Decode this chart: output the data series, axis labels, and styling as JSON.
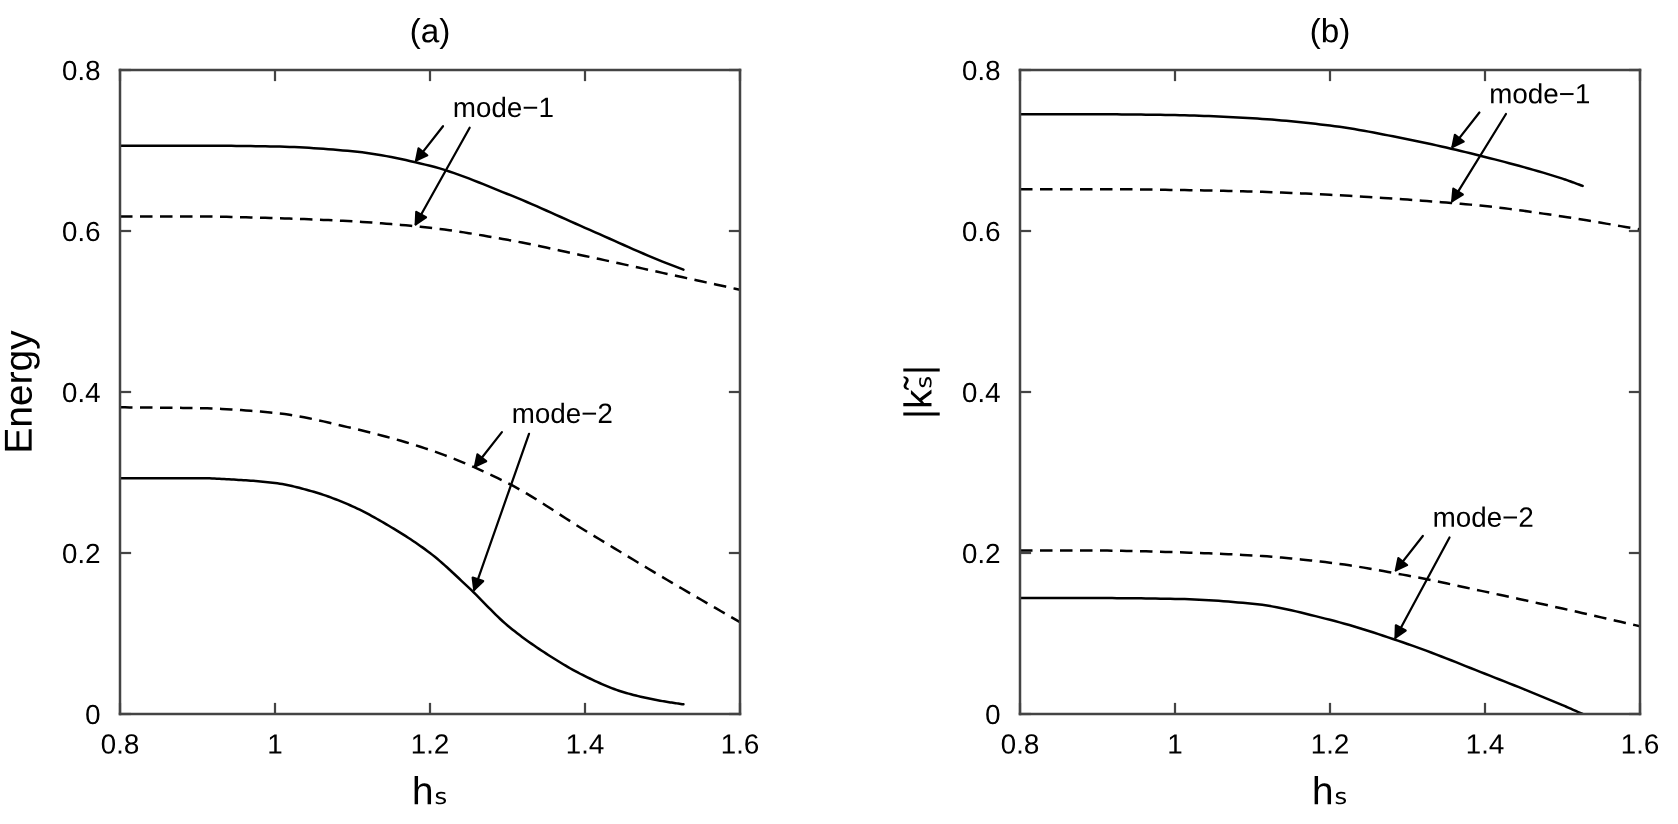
{
  "chart_data": [
    {
      "type": "line",
      "title": "(a)",
      "xlabel": "hₛ",
      "ylabel": "Energy",
      "xlim": [
        0.8,
        1.6
      ],
      "ylim": [
        0,
        0.8
      ],
      "xticks": [
        0.8,
        1,
        1.2,
        1.4,
        1.6
      ],
      "yticks": [
        0,
        0.2,
        0.4,
        0.6,
        0.8
      ],
      "series": [
        {
          "color": "#000000",
          "line_style": "solid",
          "x": [
            0.8,
            0.9,
            1.0,
            1.1,
            1.2,
            1.3,
            1.4,
            1.5,
            1.527
          ],
          "values": [
            0.706,
            0.706,
            0.705,
            0.699,
            0.681,
            0.646,
            0.604,
            0.562,
            0.552
          ]
        },
        {
          "color": "#000000",
          "line_style": "dashed",
          "x": [
            0.8,
            0.9,
            1.0,
            1.1,
            1.2,
            1.3,
            1.4,
            1.5,
            1.6
          ],
          "values": [
            0.618,
            0.618,
            0.616,
            0.612,
            0.604,
            0.589,
            0.569,
            0.548,
            0.527
          ]
        },
        {
          "color": "#000000",
          "line_style": "dashed",
          "x": [
            0.8,
            0.9,
            1.0,
            1.1,
            1.2,
            1.3,
            1.4,
            1.5,
            1.6
          ],
          "values": [
            0.381,
            0.38,
            0.374,
            0.355,
            0.328,
            0.287,
            0.228,
            0.17,
            0.114
          ]
        },
        {
          "color": "#000000",
          "line_style": "solid",
          "x": [
            0.8,
            0.9,
            0.95,
            1.0,
            1.05,
            1.1,
            1.15,
            1.2,
            1.25,
            1.3,
            1.35,
            1.4,
            1.45,
            1.5,
            1.527
          ],
          "values": [
            0.293,
            0.293,
            0.291,
            0.287,
            0.276,
            0.258,
            0.232,
            0.2,
            0.157,
            0.11,
            0.075,
            0.047,
            0.027,
            0.016,
            0.012
          ]
        }
      ],
      "annotations": [
        {
          "text": "mode−1",
          "x": 1.18,
          "y": 0.685
        },
        {
          "text": "mode−2",
          "x": 1.256,
          "y": 0.305
        }
      ]
    },
    {
      "type": "line",
      "title": "(b)",
      "xlabel": "hₛ",
      "ylabel": "|k̃ₛ|",
      "xlim": [
        0.8,
        1.6
      ],
      "ylim": [
        0,
        0.8
      ],
      "xticks": [
        0.8,
        1,
        1.2,
        1.4,
        1.6
      ],
      "yticks": [
        0,
        0.2,
        0.4,
        0.6,
        0.8
      ],
      "series": [
        {
          "color": "#000000",
          "line_style": "solid",
          "x": [
            0.8,
            0.9,
            1.0,
            1.1,
            1.2,
            1.3,
            1.4,
            1.5,
            1.526
          ],
          "values": [
            0.745,
            0.745,
            0.744,
            0.74,
            0.731,
            0.714,
            0.692,
            0.665,
            0.656
          ]
        },
        {
          "color": "#000000",
          "line_style": "dashed",
          "x": [
            0.8,
            0.9,
            1.0,
            1.1,
            1.2,
            1.3,
            1.4,
            1.5,
            1.6
          ],
          "values": [
            0.652,
            0.652,
            0.651,
            0.649,
            0.645,
            0.639,
            0.631,
            0.618,
            0.602
          ]
        },
        {
          "color": "#000000",
          "line_style": "dashed",
          "x": [
            0.8,
            0.9,
            1.0,
            1.1,
            1.2,
            1.3,
            1.4,
            1.5,
            1.6
          ],
          "values": [
            0.203,
            0.203,
            0.201,
            0.197,
            0.188,
            0.172,
            0.152,
            0.131,
            0.109
          ]
        },
        {
          "color": "#000000",
          "line_style": "solid",
          "x": [
            0.8,
            0.9,
            1.0,
            1.1,
            1.2,
            1.3,
            1.4,
            1.5,
            1.526
          ],
          "values": [
            0.144,
            0.144,
            0.143,
            0.137,
            0.117,
            0.087,
            0.05,
            0.011,
            0
          ]
        }
      ],
      "annotations": [
        {
          "text": "mode−1",
          "x": 1.356,
          "y": 0.702
        },
        {
          "text": "mode−2",
          "x": 1.283,
          "y": 0.176
        }
      ]
    }
  ]
}
